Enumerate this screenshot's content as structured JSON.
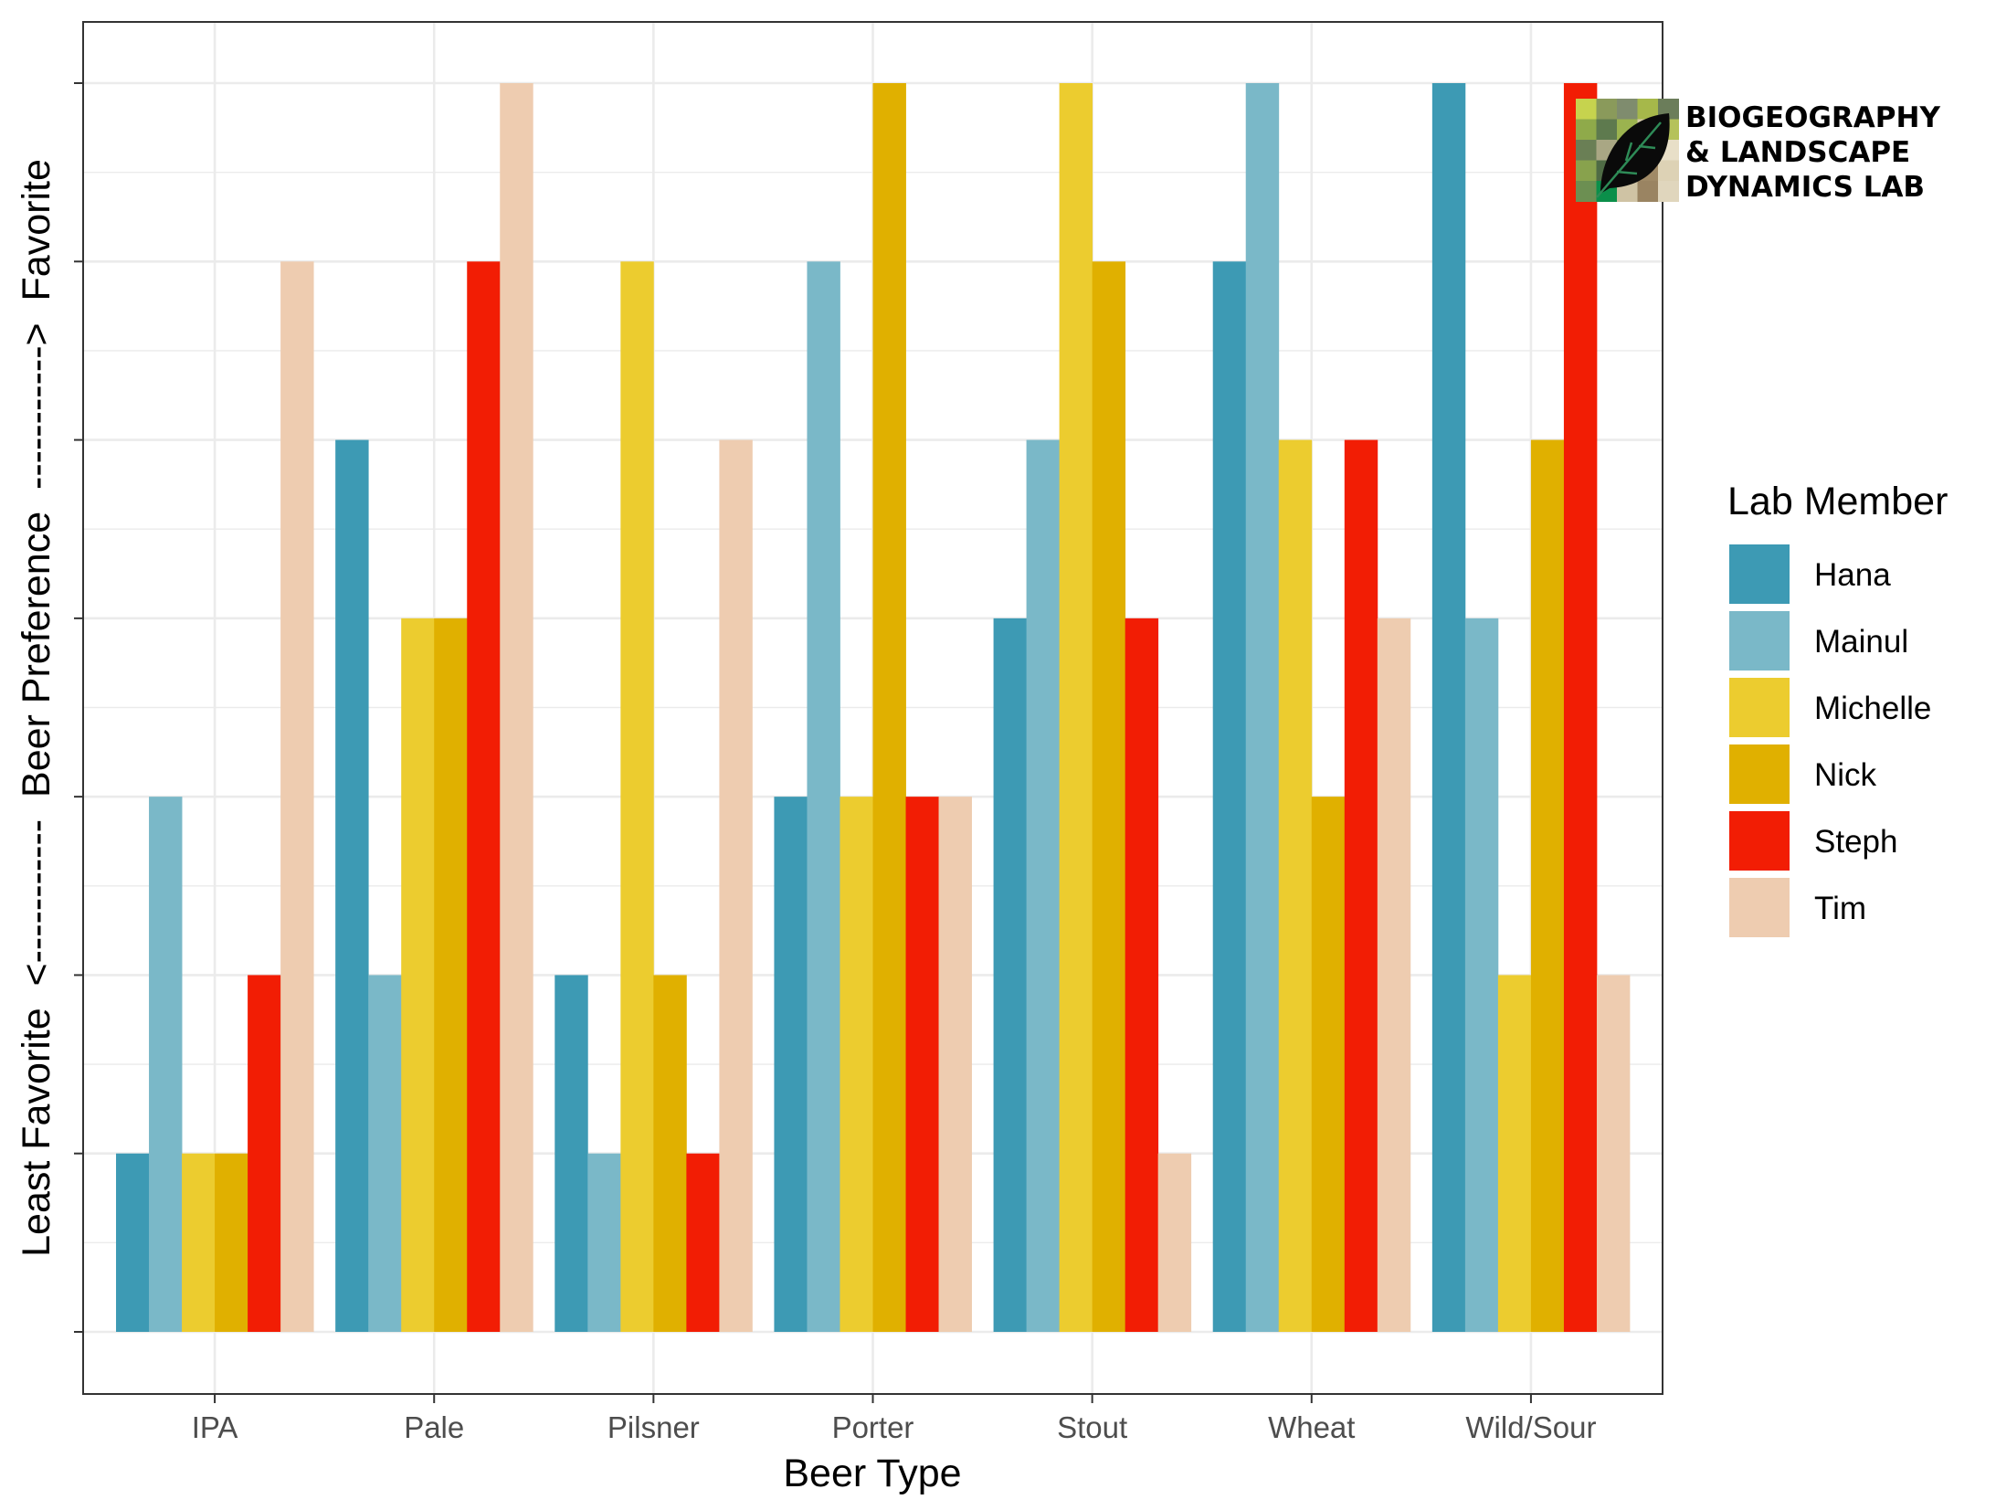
{
  "chart_data": {
    "type": "bar",
    "xlabel": "Beer Type",
    "ylabel": "Least Favorite  <-----------  Beer Preference  ----------->  Favorite",
    "categories": [
      "IPA",
      "Pale",
      "Pilsner",
      "Porter",
      "Stout",
      "Wheat",
      "Wild/Sour"
    ],
    "ylim": [
      0,
      7
    ],
    "grid": true,
    "legend": {
      "title": "Lab Member",
      "position": "right"
    },
    "series": [
      {
        "name": "Hana",
        "color": "#3d9ab4",
        "values": [
          1,
          5,
          2,
          3,
          4,
          6,
          7
        ]
      },
      {
        "name": "Mainul",
        "color": "#7ab8c8",
        "values": [
          3,
          2,
          1,
          6,
          5,
          7,
          4
        ]
      },
      {
        "name": "Michelle",
        "color": "#eccc2f",
        "values": [
          1,
          4,
          6,
          3,
          7,
          5,
          2
        ]
      },
      {
        "name": "Nick",
        "color": "#e0b000",
        "values": [
          1,
          4,
          2,
          7,
          6,
          3,
          5
        ]
      },
      {
        "name": "Steph",
        "color": "#f21d04",
        "values": [
          2,
          6,
          1,
          3,
          4,
          5,
          7
        ]
      },
      {
        "name": "Tim",
        "color": "#eeccb0",
        "values": [
          6,
          7,
          5,
          3,
          1,
          4,
          2
        ]
      }
    ]
  },
  "logo": {
    "lines": [
      "BIOGEOGRAPHY",
      "& LANDSCAPE",
      "DYNAMICS LAB"
    ],
    "icon": "leaf-icon"
  }
}
